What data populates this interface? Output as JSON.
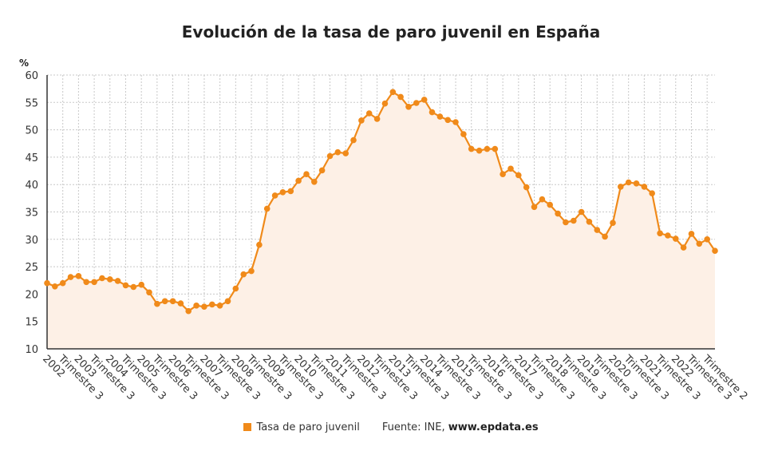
{
  "chart_data": {
    "type": "area",
    "title": "Evolución de la tasa de paro juvenil en España",
    "ylabel": "%",
    "xlabel": "",
    "ylim": [
      10,
      60
    ],
    "yticks": [
      10,
      15,
      20,
      25,
      30,
      35,
      40,
      45,
      50,
      55,
      60
    ],
    "grid": true,
    "color": "#f08a1a",
    "fill_color": "#fdf0e6",
    "x_tick_labels": [
      "2002",
      "Trimestre 3",
      "2003",
      "Trimestre 3",
      "2004",
      "Trimestre 3",
      "2005",
      "Trimestre 3",
      "2006",
      "Trimestre 3",
      "2007",
      "Trimestre 3",
      "2008",
      "Trimestre 3",
      "2009",
      "Trimestre 3",
      "2010",
      "Trimestre 3",
      "2011",
      "Trimestre 3",
      "2012",
      "Trimestre 3",
      "2013",
      "Trimestre 3",
      "2014",
      "Trimestre 3",
      "2015",
      "Trimestre 3",
      "2016",
      "Trimestre 3",
      "2017",
      "Trimestre 3",
      "2018",
      "Trimestre 3",
      "2019",
      "Trimestre 3",
      "2020",
      "Trimestre 3",
      "2021",
      "Trimestre 3",
      "2022",
      "Trimestre 3",
      "Trimestre 2"
    ],
    "series": [
      {
        "name": "Tasa de paro juvenil",
        "values": [
          22.0,
          21.4,
          22.0,
          23.1,
          23.3,
          22.2,
          22.2,
          22.9,
          22.7,
          22.4,
          21.6,
          21.3,
          21.7,
          20.3,
          18.2,
          18.7,
          18.7,
          18.3,
          16.9,
          17.9,
          17.7,
          18.1,
          17.9,
          18.7,
          21.0,
          23.6,
          24.2,
          29.0,
          35.6,
          38.0,
          38.6,
          38.8,
          40.7,
          41.9,
          40.5,
          42.6,
          45.2,
          45.9,
          45.7,
          48.1,
          51.7,
          53.0,
          52.0,
          54.8,
          56.9,
          56.0,
          54.2,
          54.9,
          55.5,
          53.2,
          52.4,
          51.8,
          51.4,
          49.2,
          46.5,
          46.2,
          46.5,
          46.5,
          41.9,
          42.9,
          41.7,
          39.5,
          35.9,
          37.3,
          36.3,
          34.7,
          33.1,
          33.4,
          35.0,
          33.2,
          31.7,
          30.5,
          33.0,
          39.6,
          40.4,
          40.2,
          39.6,
          38.4,
          31.1,
          30.7,
          30.1,
          28.5,
          31.0,
          29.2,
          30.0,
          27.9
        ]
      }
    ]
  },
  "legend": {
    "series_label": "Tasa de paro juvenil",
    "source_prefix": "Fuente: INE,",
    "source_site": "www.epdata.es"
  }
}
